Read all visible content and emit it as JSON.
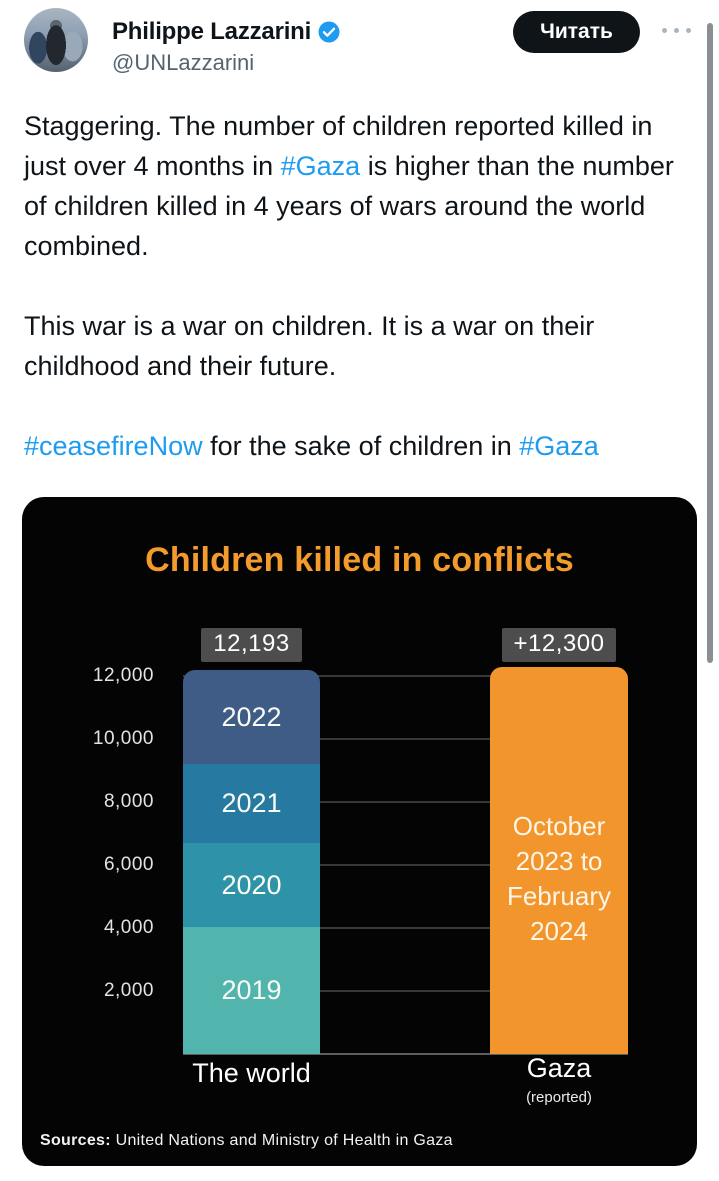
{
  "header": {
    "display_name": "Philippe Lazzarini",
    "handle": "@UNLazzarini",
    "verified": true,
    "follow_button_label": "Читать"
  },
  "tweet": {
    "paragraphs": [
      [
        {
          "t": "Staggering. The number of children reported killed in just over 4 months in "
        },
        {
          "t": "#Gaza",
          "link": true
        },
        {
          "t": " is higher than the number of children killed in 4 years of wars around the world combined."
        }
      ],
      [
        {
          "t": "This war is a war on children. It is a war on their childhood and their future."
        }
      ],
      [
        {
          "t": "#ceasefireNow",
          "link": true
        },
        {
          "t": " for the sake of children in "
        },
        {
          "t": "#Gaza",
          "link": true
        }
      ]
    ],
    "link_color": "#1d9bf0"
  },
  "chart_data": {
    "type": "bar",
    "title": "Children killed in conflicts",
    "title_color": "#f39b2d",
    "background": "#040404",
    "grid": true,
    "legend": "none",
    "ylim": [
      0,
      13000
    ],
    "y_ticks": [
      2000,
      4000,
      6000,
      8000,
      10000,
      12000
    ],
    "y_tick_labels": [
      "2,000",
      "4,000",
      "6,000",
      "8,000",
      "10,000",
      "12,000"
    ],
    "categories": [
      "The world",
      "Gaza"
    ],
    "bars": [
      {
        "label": "The world",
        "total": 12193,
        "total_label": "12,193",
        "stacked": true,
        "segments": [
          {
            "name": "2019",
            "value": 4019,
            "color": "#52b5ad"
          },
          {
            "name": "2020",
            "value": 2674,
            "color": "#2e93a8"
          },
          {
            "name": "2021",
            "value": 2515,
            "color": "#2679a1"
          },
          {
            "name": "2022",
            "value": 2985,
            "color": "#3e5c85"
          }
        ]
      },
      {
        "label": "Gaza",
        "sublabel": "(reported)",
        "total": 12300,
        "total_label": "+12,300",
        "color": "#f2952d",
        "inner_label": "October 2023 to February 2024"
      }
    ]
  },
  "sources": {
    "prefix": "Sources:",
    "text": " United Nations and  Ministry of Health in Gaza"
  }
}
